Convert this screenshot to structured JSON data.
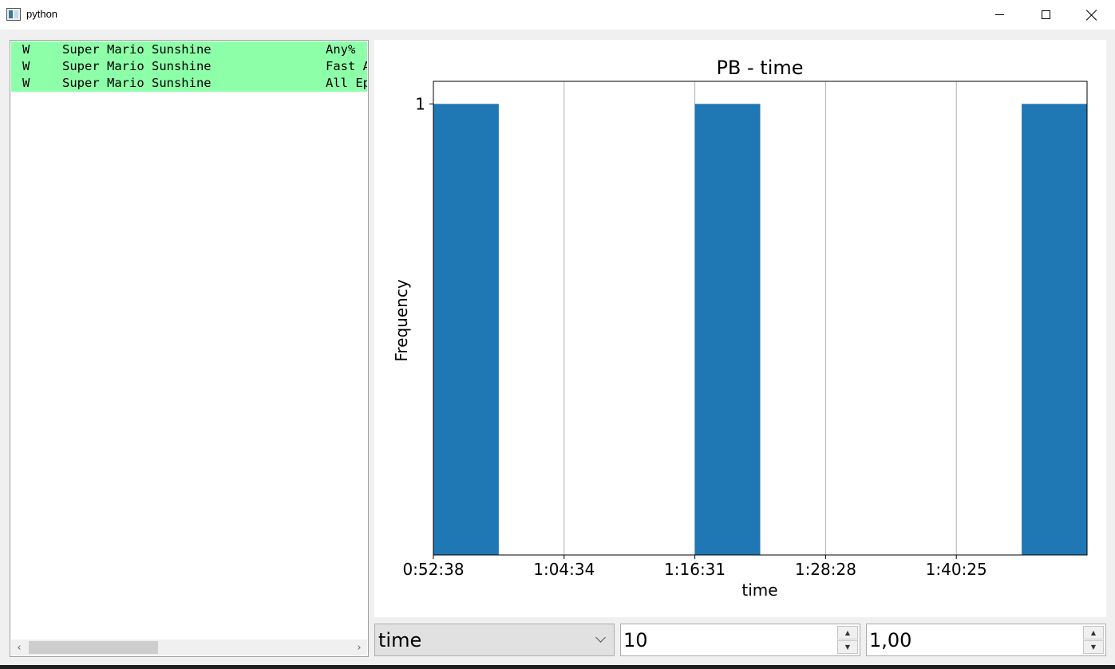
{
  "window": {
    "title": "python",
    "icon": "python-app-icon"
  },
  "list": {
    "rows": [
      {
        "a": "W",
        "b": "Super Mario Sunshine",
        "c": "Any%"
      },
      {
        "a": "W",
        "b": "Super Mario Sunshine",
        "c": "Fast A"
      },
      {
        "a": "W",
        "b": "Super Mario Sunshine",
        "c": "All Ep"
      }
    ],
    "row_color": "#8effa9"
  },
  "chart_data": {
    "type": "bar",
    "title": "PB - time",
    "xlabel": "time",
    "ylabel": "Frequency",
    "x_tick_labels": [
      "0:52:38",
      "1:04:34",
      "1:16:31",
      "1:28:28",
      "1:40:25"
    ],
    "y_tick_labels": [
      "1"
    ],
    "bins": 10,
    "bars": [
      {
        "bin": 0,
        "value": 1
      },
      {
        "bin": 4,
        "value": 1
      },
      {
        "bin": 9,
        "value": 1
      }
    ],
    "ylim": [
      0,
      1.05
    ],
    "bar_color": "#1f77b4",
    "grid": "x-vertical"
  },
  "controls": {
    "column_select": "time",
    "bins_value": "10",
    "scale_value": "1,00"
  }
}
